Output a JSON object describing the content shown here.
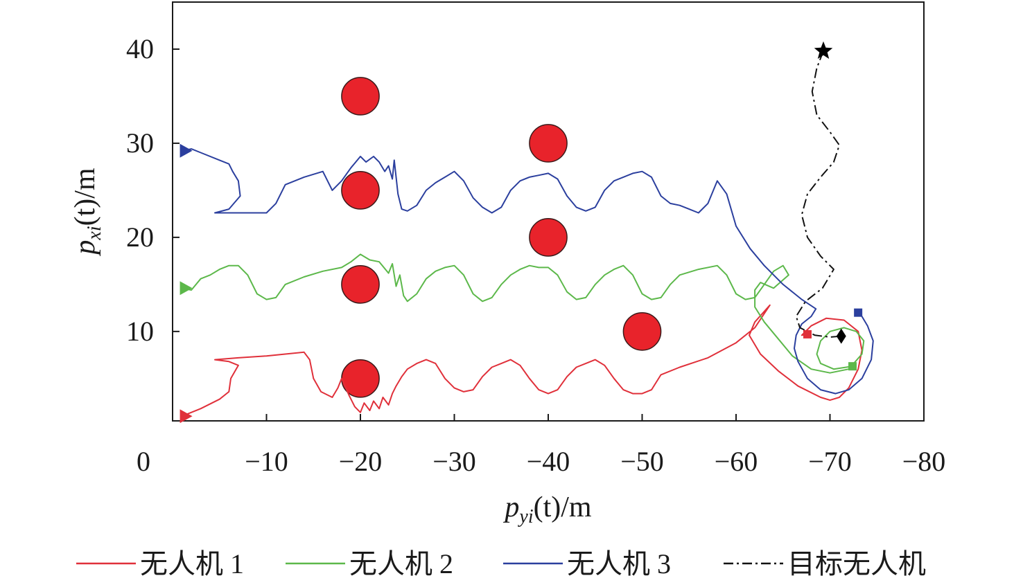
{
  "chart_data": {
    "type": "line",
    "xlabel": {
      "base": "p",
      "sub": "yi",
      "rest": "(t)/m"
    },
    "ylabel": {
      "base": "p",
      "sub": "xi",
      "rest": "(t)/m"
    },
    "xlim": [
      0,
      -80
    ],
    "ylim": [
      0.5,
      45
    ],
    "x_ticks": [
      0,
      -10,
      -20,
      -30,
      -40,
      -50,
      -60,
      -70,
      -80
    ],
    "x_tick_labels": [
      "0",
      "−10",
      "−20",
      "−30",
      "−40",
      "−50",
      "−60",
      "−70",
      "−80"
    ],
    "y_ticks": [
      10,
      20,
      30,
      40
    ],
    "y_tick_labels": [
      "10",
      "20",
      "30",
      "40"
    ],
    "grid": false,
    "legend_position": "bottom",
    "obstacles": [
      {
        "x": -20,
        "y": 35,
        "r": 2
      },
      {
        "x": -20,
        "y": 25,
        "r": 2
      },
      {
        "x": -20,
        "y": 15,
        "r": 2
      },
      {
        "x": -20,
        "y": 5,
        "r": 2
      },
      {
        "x": -40,
        "y": 30,
        "r": 2
      },
      {
        "x": -40,
        "y": 20,
        "r": 2
      },
      {
        "x": -50,
        "y": 10,
        "r": 2
      }
    ],
    "obstacle_color": "#e8232b",
    "series": [
      {
        "name": "无人机 1",
        "color": "#e0303a",
        "dash": "",
        "start_marker": "triangle",
        "end_marker": "square",
        "points": [
          [
            -1,
            1
          ],
          [
            -3,
            1.8
          ],
          [
            -5,
            2.8
          ],
          [
            -6,
            3.6
          ],
          [
            -6.2,
            5
          ],
          [
            -7,
            6.4
          ],
          [
            -6,
            6.8
          ],
          [
            -4.5,
            7
          ],
          [
            -7,
            7.2
          ],
          [
            -10,
            7.4
          ],
          [
            -12,
            7.6
          ],
          [
            -14,
            7.8
          ],
          [
            -14.6,
            7
          ],
          [
            -15,
            5
          ],
          [
            -15.8,
            3.6
          ],
          [
            -17,
            3
          ],
          [
            -17.6,
            4
          ],
          [
            -18,
            5
          ],
          [
            -18.8,
            3.2
          ],
          [
            -19.4,
            2
          ],
          [
            -20,
            1.4
          ],
          [
            -20.4,
            2.4
          ],
          [
            -21,
            1.6
          ],
          [
            -21.4,
            2.6
          ],
          [
            -22,
            1.8
          ],
          [
            -22.4,
            3
          ],
          [
            -23,
            2.2
          ],
          [
            -23.4,
            3.4
          ],
          [
            -23.8,
            4.2
          ],
          [
            -24.4,
            5.2
          ],
          [
            -25,
            6
          ],
          [
            -26,
            6.6
          ],
          [
            -27,
            7
          ],
          [
            -28,
            6.6
          ],
          [
            -29,
            5
          ],
          [
            -30,
            4
          ],
          [
            -31,
            3.6
          ],
          [
            -32,
            3.8
          ],
          [
            -33,
            5.2
          ],
          [
            -34,
            6.2
          ],
          [
            -35,
            6.6
          ],
          [
            -36,
            7
          ],
          [
            -37,
            6.4
          ],
          [
            -38,
            5
          ],
          [
            -39,
            3.8
          ],
          [
            -40,
            3.4
          ],
          [
            -41,
            3.8
          ],
          [
            -42,
            5.2
          ],
          [
            -43,
            6.2
          ],
          [
            -44,
            6.6
          ],
          [
            -45,
            7
          ],
          [
            -46,
            6.4
          ],
          [
            -47,
            5
          ],
          [
            -48,
            3.8
          ],
          [
            -49,
            3.4
          ],
          [
            -50,
            3.4
          ],
          [
            -51,
            3.8
          ],
          [
            -52,
            5.4
          ],
          [
            -54,
            6.2
          ],
          [
            -57,
            7.2
          ],
          [
            -60,
            8.8
          ],
          [
            -62,
            10.4
          ],
          [
            -63.6,
            12.8
          ],
          [
            -62,
            11
          ],
          [
            -61.4,
            9.6
          ],
          [
            -62.6,
            7.6
          ],
          [
            -64.5,
            5.8
          ],
          [
            -66.6,
            4.2
          ],
          [
            -69,
            3
          ],
          [
            -70,
            2.7
          ],
          [
            -71,
            3
          ],
          [
            -72,
            4
          ],
          [
            -73,
            6
          ],
          [
            -73.4,
            8
          ],
          [
            -73,
            10
          ],
          [
            -71.5,
            11.2
          ],
          [
            -69.6,
            11.4
          ],
          [
            -68,
            10.6
          ],
          [
            -67,
            9.6
          ],
          [
            -67.6,
            9.7
          ]
        ]
      },
      {
        "name": "无人机 2",
        "color": "#5cb84a",
        "dash": "",
        "start_marker": "triangle",
        "end_marker": "square",
        "points": [
          [
            -1,
            14.6
          ],
          [
            -2,
            14.4
          ],
          [
            -3,
            15.6
          ],
          [
            -4,
            16
          ],
          [
            -5,
            16.6
          ],
          [
            -6,
            17
          ],
          [
            -7,
            17
          ],
          [
            -8,
            16
          ],
          [
            -9,
            14
          ],
          [
            -10,
            13.4
          ],
          [
            -11,
            13.6
          ],
          [
            -12,
            15
          ],
          [
            -14,
            15.8
          ],
          [
            -16,
            16.4
          ],
          [
            -18,
            16.8
          ],
          [
            -19,
            17.4
          ],
          [
            -20,
            18.2
          ],
          [
            -21,
            17.6
          ],
          [
            -22,
            17.4
          ],
          [
            -23,
            16.2
          ],
          [
            -23.4,
            17.2
          ],
          [
            -23.8,
            14.8
          ],
          [
            -24.2,
            16
          ],
          [
            -24.6,
            13.8
          ],
          [
            -25,
            13.2
          ],
          [
            -26,
            14
          ],
          [
            -27,
            15.6
          ],
          [
            -28,
            16.4
          ],
          [
            -29,
            16.8
          ],
          [
            -30,
            17
          ],
          [
            -31,
            16
          ],
          [
            -32,
            14
          ],
          [
            -33,
            13.2
          ],
          [
            -34,
            13.6
          ],
          [
            -35,
            15
          ],
          [
            -36,
            16
          ],
          [
            -37,
            16.6
          ],
          [
            -38,
            17
          ],
          [
            -39,
            16.8
          ],
          [
            -40,
            16.8
          ],
          [
            -41,
            16
          ],
          [
            -42,
            14.2
          ],
          [
            -43,
            13.4
          ],
          [
            -44,
            13.6
          ],
          [
            -45,
            15
          ],
          [
            -46,
            16
          ],
          [
            -47,
            16.6
          ],
          [
            -48,
            17
          ],
          [
            -49,
            16
          ],
          [
            -50,
            14
          ],
          [
            -51,
            13.4
          ],
          [
            -52,
            13.6
          ],
          [
            -53,
            15
          ],
          [
            -54,
            16
          ],
          [
            -56,
            16.6
          ],
          [
            -58,
            17
          ],
          [
            -59,
            16
          ],
          [
            -60,
            14
          ],
          [
            -61,
            13.4
          ],
          [
            -62,
            13.6
          ],
          [
            -63,
            15
          ],
          [
            -64,
            16.4
          ],
          [
            -65,
            17
          ],
          [
            -65.6,
            16
          ],
          [
            -64,
            14.6
          ],
          [
            -62.6,
            15.2
          ],
          [
            -62,
            14.4
          ],
          [
            -62,
            12.6
          ],
          [
            -63,
            11
          ],
          [
            -64.5,
            9.2
          ],
          [
            -66,
            7.4
          ],
          [
            -68,
            6
          ],
          [
            -70,
            5.6
          ],
          [
            -72,
            6
          ],
          [
            -73.4,
            7.6
          ],
          [
            -73.6,
            9
          ],
          [
            -72.8,
            10
          ],
          [
            -71.5,
            10.4
          ],
          [
            -70,
            10
          ],
          [
            -69,
            9
          ],
          [
            -68.6,
            7.6
          ],
          [
            -69,
            6.6
          ],
          [
            -70.4,
            6
          ],
          [
            -72.4,
            6.3
          ]
        ]
      },
      {
        "name": "无人机 3",
        "color": "#2b3f9e",
        "dash": "",
        "start_marker": "triangle",
        "end_marker": "square",
        "points": [
          [
            -1,
            29.2
          ],
          [
            -2,
            29.4
          ],
          [
            -3,
            29
          ],
          [
            -5,
            28.2
          ],
          [
            -6,
            27.8
          ],
          [
            -6.4,
            27
          ],
          [
            -7,
            26
          ],
          [
            -7.2,
            24.4
          ],
          [
            -6,
            23
          ],
          [
            -4.5,
            22.6
          ],
          [
            -6,
            22.6
          ],
          [
            -8,
            22.6
          ],
          [
            -10,
            22.6
          ],
          [
            -11,
            23.6
          ],
          [
            -12,
            25.6
          ],
          [
            -14,
            26.4
          ],
          [
            -16,
            27
          ],
          [
            -17,
            25
          ],
          [
            -18,
            26
          ],
          [
            -19,
            27.4
          ],
          [
            -20,
            28.6
          ],
          [
            -20.6,
            28
          ],
          [
            -21.4,
            28.6
          ],
          [
            -22,
            28
          ],
          [
            -22.6,
            27
          ],
          [
            -23,
            27.6
          ],
          [
            -23.4,
            26.2
          ],
          [
            -23.6,
            28.2
          ],
          [
            -24,
            24.6
          ],
          [
            -24.4,
            23
          ],
          [
            -25,
            22.8
          ],
          [
            -26,
            23.4
          ],
          [
            -27,
            25
          ],
          [
            -28,
            25.8
          ],
          [
            -29,
            26.4
          ],
          [
            -30,
            27
          ],
          [
            -31,
            26
          ],
          [
            -32,
            24.2
          ],
          [
            -33,
            23.2
          ],
          [
            -34,
            22.6
          ],
          [
            -35,
            23.2
          ],
          [
            -36,
            25
          ],
          [
            -37,
            26
          ],
          [
            -38,
            26.4
          ],
          [
            -39,
            26.6
          ],
          [
            -40,
            26.8
          ],
          [
            -41,
            26.2
          ],
          [
            -42,
            24.4
          ],
          [
            -43,
            23.2
          ],
          [
            -44,
            22.8
          ],
          [
            -45,
            23.2
          ],
          [
            -46,
            25
          ],
          [
            -47,
            26
          ],
          [
            -48,
            26.4
          ],
          [
            -49,
            26.8
          ],
          [
            -50,
            27
          ],
          [
            -51,
            26.4
          ],
          [
            -52,
            24.4
          ],
          [
            -53,
            23.6
          ],
          [
            -54,
            23.4
          ],
          [
            -55,
            23
          ],
          [
            -56,
            22.6
          ],
          [
            -57,
            23.6
          ],
          [
            -58,
            26
          ],
          [
            -59,
            24.6
          ],
          [
            -60,
            21.2
          ],
          [
            -61.5,
            18.8
          ],
          [
            -63,
            17
          ],
          [
            -65,
            15
          ],
          [
            -67,
            13.4
          ],
          [
            -68.5,
            12.4
          ],
          [
            -68,
            11.6
          ],
          [
            -67,
            10.8
          ],
          [
            -66.4,
            9.6
          ],
          [
            -66.2,
            8.2
          ],
          [
            -66.6,
            6.8
          ],
          [
            -67.6,
            5
          ],
          [
            -69,
            3.8
          ],
          [
            -70.6,
            3.4
          ],
          [
            -72,
            3.8
          ],
          [
            -73.4,
            5
          ],
          [
            -74.4,
            7
          ],
          [
            -74.6,
            9
          ],
          [
            -74,
            10.6
          ],
          [
            -73.4,
            11.6
          ],
          [
            -73,
            12
          ]
        ]
      },
      {
        "name": "目标无人机",
        "color": "#111111",
        "dash": "14 5 3 5",
        "start_marker": "star",
        "end_marker": "diamond",
        "points": [
          [
            -69.3,
            39.8
          ],
          [
            -68.6,
            38
          ],
          [
            -68.1,
            35.5
          ],
          [
            -68.6,
            33
          ],
          [
            -70,
            31.2
          ],
          [
            -71,
            29.8
          ],
          [
            -70.4,
            28
          ],
          [
            -69,
            26.4
          ],
          [
            -67.6,
            24.6
          ],
          [
            -67,
            22.4
          ],
          [
            -67.6,
            20
          ],
          [
            -69,
            18
          ],
          [
            -70.4,
            16.6
          ],
          [
            -69.2,
            14.6
          ],
          [
            -67.4,
            13.2
          ],
          [
            -66.4,
            11.6
          ],
          [
            -66.8,
            10.4
          ],
          [
            -68.4,
            9.6
          ],
          [
            -70,
            9.4
          ],
          [
            -71.2,
            9.5
          ]
        ]
      }
    ],
    "legend": [
      "无人机 1",
      "无人机 2",
      "无人机 3",
      "目标无人机"
    ]
  }
}
